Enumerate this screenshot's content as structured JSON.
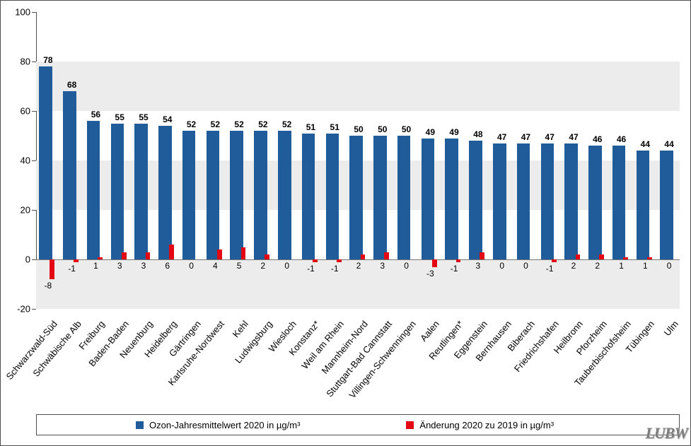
{
  "chart": {
    "type": "bar",
    "background_color": "#ffffff",
    "grid_band_color": "#ececec",
    "axis_color": "#4f4f4f",
    "ylim": [
      -20,
      100
    ],
    "ytick_step": 20,
    "yticks": [
      -20,
      0,
      20,
      40,
      60,
      80,
      100
    ],
    "series1_color": "#1f5c99",
    "series2_color": "#e30613",
    "title_fontsize": 13,
    "label_fontsize": 13,
    "value_fontsize": 12,
    "categories": [
      "Schwarzwald-Süd",
      "Schwäbische Alb",
      "Freiburg",
      "Baden-Baden",
      "Neuenburg",
      "Heidelberg",
      "Gärtringen",
      "Karlsruhe-Nordwest",
      "Kehl",
      "Ludwigsburg",
      "Wiesloch",
      "Konstanz*",
      "Weil am Rhein",
      "Mannheim-Nord",
      "Stuttgart-Bad Cannstatt",
      "Villingen-Schwenningen",
      "Aalen",
      "Reutlingen*",
      "Eggenstein",
      "Bernhausen",
      "Biberach",
      "Friedrichshafen",
      "Heilbronn",
      "Pforzheim",
      "Tauberbischofsheim",
      "Tübingen",
      "Ulm"
    ],
    "values": [
      78,
      68,
      56,
      55,
      55,
      54,
      52,
      52,
      52,
      52,
      52,
      51,
      51,
      50,
      50,
      50,
      49,
      49,
      48,
      47,
      47,
      47,
      47,
      46,
      46,
      44,
      44
    ],
    "changes": [
      -8,
      -1,
      1,
      3,
      3,
      6,
      0,
      4,
      5,
      2,
      0,
      -1,
      -1,
      2,
      3,
      0,
      -3,
      -1,
      3,
      0,
      0,
      -1,
      2,
      2,
      1,
      1,
      0
    ]
  },
  "legend": {
    "series1": "Ozon-Jahresmittelwert 2020 in µg/m³",
    "series2": "Änderung 2020 zu 2019 in µg/m³"
  },
  "logo": "LUBW"
}
